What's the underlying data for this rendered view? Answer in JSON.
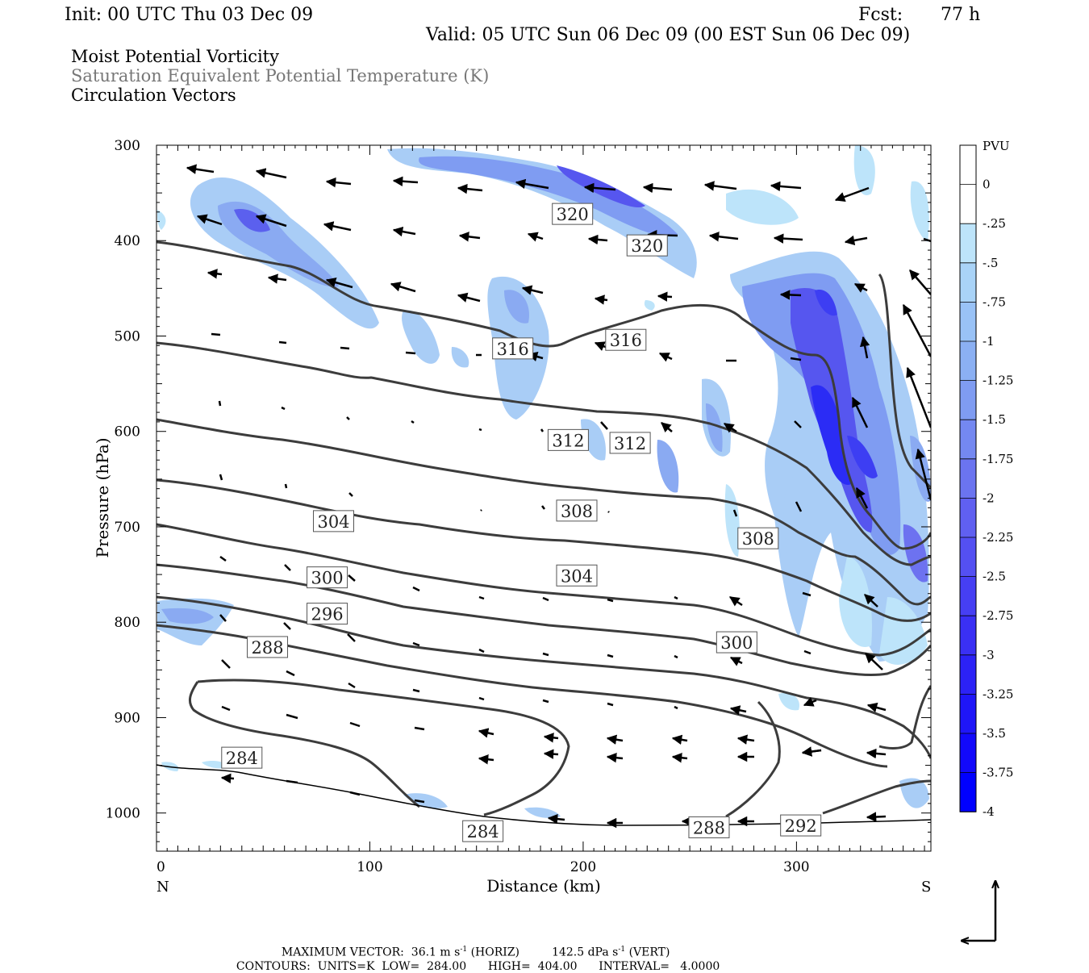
{
  "header": {
    "init": "Init: 00 UTC Thu 03 Dec 09",
    "fcst_label": "Fcst:",
    "fcst_value": "77 h",
    "valid": "Valid: 05 UTC Sun 06 Dec 09 (00 EST Sun 06 Dec 09)"
  },
  "fields": {
    "line1": "Moist Potential Vorticity",
    "line2": "Saturation Equivalent Potential Temperature (K)",
    "line3": "Circulation Vectors"
  },
  "colors": {
    "pv_shading": [
      "#ffffff",
      "#ffffff",
      "#bde4fa",
      "#a9d3f7",
      "#99c2f6",
      "#8bb0f3",
      "#7f9cf2",
      "#7488f1",
      "#6b74f0",
      "#6060f1",
      "#5450f2",
      "#463ff3",
      "#3a30f4",
      "#2c22f6",
      "#1f16f8",
      "#1209fb",
      "#0000ff"
    ],
    "contour": "#3c3c3c",
    "vector": "#000000"
  },
  "chart_data": {
    "type": "heatmap",
    "xlabel": "Distance (km)",
    "ylabel": "Pressure (hPa)",
    "x_ticks": [
      0,
      100,
      200,
      300
    ],
    "y_ticks": [
      300,
      400,
      500,
      600,
      700,
      800,
      900,
      1000
    ],
    "xlim": [
      0,
      363
    ],
    "ylim": [
      1040,
      300
    ],
    "left_end_label": "N",
    "right_end_label": "S",
    "colorbar": {
      "unit": "PVU",
      "levels": [
        "0",
        "-.25",
        "-.5",
        "-.75",
        "-1",
        "-1.25",
        "-1.5",
        "-1.75",
        "-2",
        "-2.25",
        "-2.5",
        "-2.75",
        "-3",
        "-3.25",
        "-3.5",
        "-3.75",
        "-4"
      ]
    },
    "contour_labels": [
      {
        "text": "320",
        "x": 195,
        "p": 372
      },
      {
        "text": "320",
        "x": 230,
        "p": 405
      },
      {
        "text": "316",
        "x": 167,
        "p": 513
      },
      {
        "text": "316",
        "x": 220,
        "p": 504
      },
      {
        "text": "312",
        "x": 193,
        "p": 609
      },
      {
        "text": "312",
        "x": 222,
        "p": 612
      },
      {
        "text": "308",
        "x": 197,
        "p": 683
      },
      {
        "text": "308",
        "x": 282,
        "p": 712
      },
      {
        "text": "304",
        "x": 83,
        "p": 694
      },
      {
        "text": "304",
        "x": 197,
        "p": 751
      },
      {
        "text": "300",
        "x": 80,
        "p": 753
      },
      {
        "text": "300",
        "x": 272,
        "p": 821
      },
      {
        "text": "296",
        "x": 80,
        "p": 791
      },
      {
        "text": "292",
        "x": 302,
        "p": 1013
      },
      {
        "text": "288",
        "x": 52,
        "p": 826
      },
      {
        "text": "288",
        "x": 259,
        "p": 1015
      },
      {
        "text": "284",
        "x": 40,
        "p": 942
      },
      {
        "text": "284",
        "x": 153,
        "p": 1019
      }
    ],
    "footer": {
      "max_vector_label": "MAXIMUM VECTOR:",
      "max_vector_horiz": "36.1 m s",
      "horiz_tag": "(HORIZ)",
      "max_vector_vert": "142.5 dPa s",
      "vert_tag": "(VERT)",
      "exponent": "-1",
      "contours_label": "CONTOURS:",
      "units": "UNITS=K",
      "low": "LOW=  284.00",
      "high": "HIGH=  404.00",
      "interval": "INTERVAL=   4.0000"
    }
  }
}
